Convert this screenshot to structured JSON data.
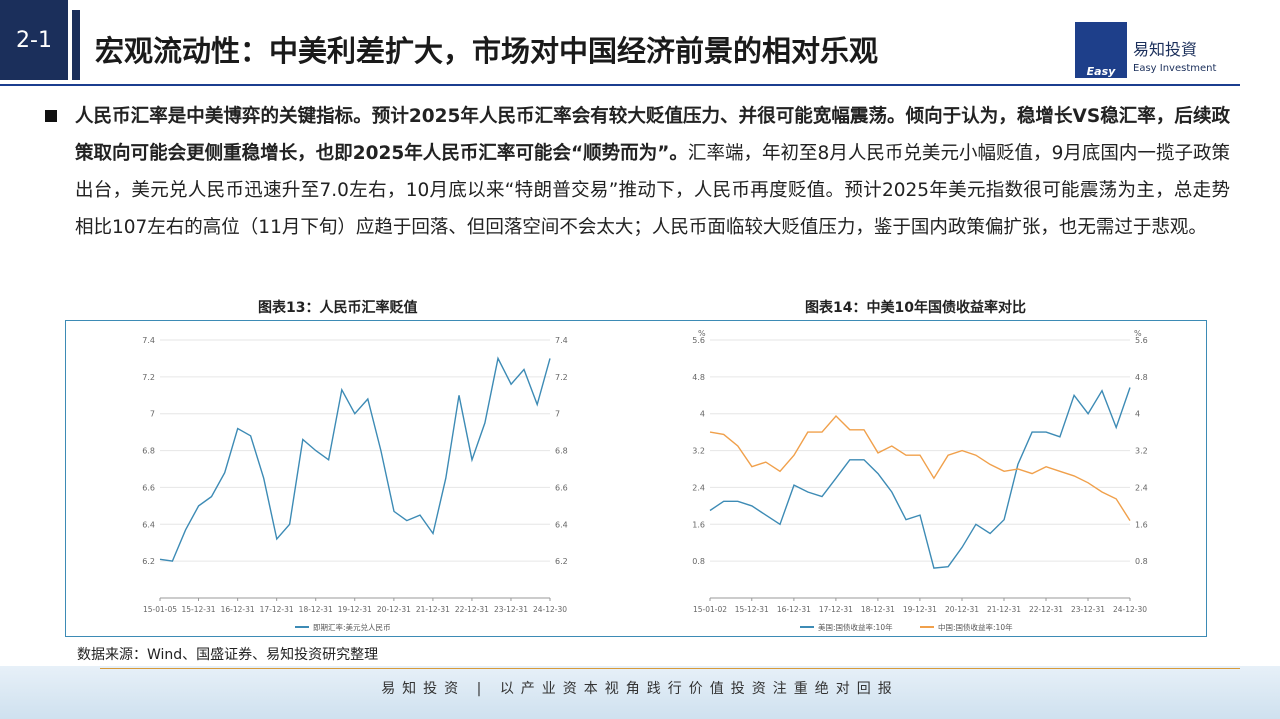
{
  "header": {
    "section": "2-1",
    "title": "宏观流动性：中美利差扩大，市场对中国经济前景的相对乐观",
    "logo_mark": "Easy",
    "logo_name": "易知投資",
    "logo_sub": "Easy Investment"
  },
  "body": {
    "bold": "人民币汇率是中美博弈的关键指标。预计2025年人民币汇率会有较大贬值压力、并很可能宽幅震荡。倾向于认为，稳增长VS稳汇率，后续政策取向可能会更侧重稳增长，也即2025年人民币汇率可能会“顺势而为”。",
    "text": "汇率端，年初至8月人民币兑美元小幅贬值，9月底国内一揽子政策出台，美元兑人民币迅速升至7.0左右，10月底以来“特朗普交易”推动下，人民币再度贬值。预计2025年美元指数很可能震荡为主，总走势相比107左右的高位（11月下旬）应趋于回落、但回落空间不会太大；人民币面临较大贬值压力，鉴于国内政策偏扩张，也无需过于悲观。"
  },
  "chart_data": [
    {
      "type": "line",
      "title": "图表13：人民币汇率贬值",
      "x": [
        "2015-01-05",
        "2015-05-01",
        "2015-09-01",
        "2016-01-01",
        "2016-05-01",
        "2016-09-01",
        "2017-01-01",
        "2017-05-01",
        "2017-09-01",
        "2018-01-01",
        "2018-05-01",
        "2018-09-01",
        "2019-01-01",
        "2019-05-01",
        "2019-09-01",
        "2020-01-01",
        "2020-05-01",
        "2020-09-01",
        "2021-01-01",
        "2021-05-01",
        "2021-09-01",
        "2022-01-01",
        "2022-05-01",
        "2022-09-01",
        "2023-01-01",
        "2023-05-01",
        "2023-09-01",
        "2024-01-01",
        "2024-05-01",
        "2024-09-01",
        "2024-12-30"
      ],
      "series": [
        {
          "name": "即期汇率:美元兑人民币",
          "color": "#3d8bb5",
          "values": [
            6.21,
            6.2,
            6.37,
            6.5,
            6.55,
            6.68,
            6.92,
            6.88,
            6.65,
            6.32,
            6.4,
            6.86,
            6.8,
            6.75,
            7.13,
            7.0,
            7.08,
            6.8,
            6.47,
            6.42,
            6.45,
            6.35,
            6.65,
            7.1,
            6.75,
            6.95,
            7.3,
            7.16,
            7.24,
            7.05,
            7.3
          ]
        }
      ],
      "xlim": [
        "2015-01-05",
        "2024-12-30"
      ],
      "xticks": [
        {
          "value": "2015-01-05",
          "label": "15-01-05"
        },
        {
          "value": "2015-12-31",
          "label": "15-12-31"
        },
        {
          "value": "2016-12-31",
          "label": "16-12-31"
        },
        {
          "value": "2017-12-31",
          "label": "17-12-31"
        },
        {
          "value": "2018-12-31",
          "label": "18-12-31"
        },
        {
          "value": "2019-12-31",
          "label": "19-12-31"
        },
        {
          "value": "2020-12-31",
          "label": "20-12-31"
        },
        {
          "value": "2021-12-31",
          "label": "21-12-31"
        },
        {
          "value": "2022-12-31",
          "label": "22-12-31"
        },
        {
          "value": "2023-12-31",
          "label": "23-12-31"
        },
        {
          "value": "2024-12-30",
          "label": "24-12-30"
        }
      ],
      "ylim": [
        6.0,
        7.4
      ],
      "yticks": [
        6.2,
        6.4,
        6.6,
        6.8,
        {
          "value": 7,
          "label": "7"
        },
        7.2,
        7.4
      ],
      "grid": true
    },
    {
      "type": "line",
      "title": "图表14：中美10年国债收益率对比",
      "y_unit": "%",
      "x": [
        "2015-01-02",
        "2015-05-01",
        "2015-09-01",
        "2016-01-01",
        "2016-05-01",
        "2016-09-01",
        "2017-01-01",
        "2017-05-01",
        "2017-09-01",
        "2018-01-01",
        "2018-05-01",
        "2018-09-01",
        "2019-01-01",
        "2019-05-01",
        "2019-09-01",
        "2020-01-01",
        "2020-05-01",
        "2020-09-01",
        "2021-01-01",
        "2021-05-01",
        "2021-09-01",
        "2022-01-01",
        "2022-05-01",
        "2022-09-01",
        "2023-01-01",
        "2023-05-01",
        "2023-09-01",
        "2024-01-01",
        "2024-05-01",
        "2024-09-01",
        "2024-12-30"
      ],
      "series": [
        {
          "name": "美国:国债收益率:10年",
          "color": "#3d8bb5",
          "values": [
            1.9,
            2.1,
            2.1,
            2.0,
            1.8,
            1.6,
            2.45,
            2.3,
            2.2,
            2.6,
            3.0,
            3.0,
            2.7,
            2.3,
            1.7,
            1.8,
            0.65,
            0.68,
            1.1,
            1.6,
            1.4,
            1.7,
            2.9,
            3.6,
            3.6,
            3.5,
            4.4,
            4.0,
            4.5,
            3.7,
            4.57
          ]
        },
        {
          "name": "中国:国债收益率:10年",
          "color": "#f0a04b",
          "values": [
            3.6,
            3.55,
            3.3,
            2.85,
            2.95,
            2.75,
            3.1,
            3.6,
            3.6,
            3.95,
            3.65,
            3.65,
            3.15,
            3.3,
            3.1,
            3.1,
            2.6,
            3.1,
            3.2,
            3.1,
            2.9,
            2.75,
            2.8,
            2.7,
            2.85,
            2.75,
            2.65,
            2.5,
            2.3,
            2.15,
            1.68
          ]
        }
      ],
      "xlim": [
        "2015-01-02",
        "2024-12-30"
      ],
      "xticks": [
        {
          "value": "2015-01-02",
          "label": "15-01-02"
        },
        {
          "value": "2015-12-31",
          "label": "15-12-31"
        },
        {
          "value": "2016-12-31",
          "label": "16-12-31"
        },
        {
          "value": "2017-12-31",
          "label": "17-12-31"
        },
        {
          "value": "2018-12-31",
          "label": "18-12-31"
        },
        {
          "value": "2019-12-31",
          "label": "19-12-31"
        },
        {
          "value": "2020-12-31",
          "label": "20-12-31"
        },
        {
          "value": "2021-12-31",
          "label": "21-12-31"
        },
        {
          "value": "2022-12-31",
          "label": "22-12-31"
        },
        {
          "value": "2023-12-31",
          "label": "23-12-31"
        },
        {
          "value": "2024-12-30",
          "label": "24-12-30"
        }
      ],
      "ylim": [
        0,
        5.6
      ],
      "yticks": [
        0.8,
        1.6,
        2.4,
        3.2,
        4,
        4.8,
        5.6
      ],
      "grid": true
    }
  ],
  "source": "数据来源：Wind、国盛证券、易知投资研究整理",
  "footer": {
    "brand": "易知投资",
    "slogan": "以产业资本视角践行价值投资注重绝对回报"
  }
}
